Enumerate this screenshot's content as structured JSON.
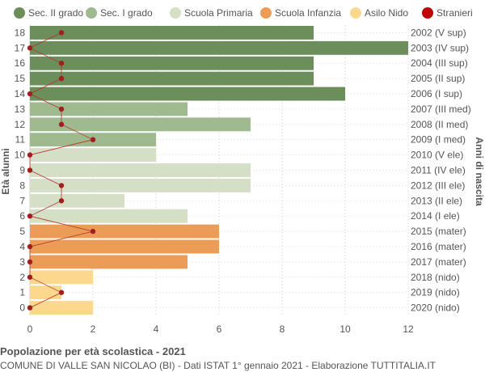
{
  "chart_data": {
    "type": "bar",
    "orientation": "horizontal",
    "title": "Popolazione per età scolastica - 2021",
    "subtitle": "COMUNE DI VALLE SAN NICOLAO (BI) - Dati ISTAT 1° gennaio 2021 - Elaborazione TUTTITALIA.IT",
    "ylabel_left": "Età alunni",
    "ylabel_right": "Anni di nascita",
    "xlim": [
      0,
      12
    ],
    "x_ticks": [
      "0",
      "2",
      "4",
      "6",
      "8",
      "10",
      "12"
    ],
    "grid": true,
    "legend_position": "top",
    "legend": [
      {
        "name": "Sec. II grado",
        "color": "#6b8e5a"
      },
      {
        "name": "Sec. I grado",
        "color": "#9fba8f"
      },
      {
        "name": "Scuola Primaria",
        "color": "#d4dfc5"
      },
      {
        "name": "Scuola Infanzia",
        "color": "#eb9d58"
      },
      {
        "name": "Asilo Nido",
        "color": "#fcd88f"
      },
      {
        "name": "Stranieri",
        "color": "#c00000"
      }
    ],
    "rows": [
      {
        "age": "18",
        "birth": "2002 (V sup)",
        "value": 9,
        "stranieri": 1,
        "group": 0
      },
      {
        "age": "17",
        "birth": "2003 (IV sup)",
        "value": 12,
        "stranieri": 0,
        "group": 0
      },
      {
        "age": "16",
        "birth": "2004 (III sup)",
        "value": 9,
        "stranieri": 1,
        "group": 0
      },
      {
        "age": "15",
        "birth": "2005 (II sup)",
        "value": 9,
        "stranieri": 1,
        "group": 0
      },
      {
        "age": "14",
        "birth": "2006 (I sup)",
        "value": 10,
        "stranieri": 0,
        "group": 0
      },
      {
        "age": "13",
        "birth": "2007 (III med)",
        "value": 5,
        "stranieri": 1,
        "group": 1
      },
      {
        "age": "12",
        "birth": "2008 (II med)",
        "value": 7,
        "stranieri": 1,
        "group": 1
      },
      {
        "age": "11",
        "birth": "2009 (I med)",
        "value": 4,
        "stranieri": 2,
        "group": 1
      },
      {
        "age": "10",
        "birth": "2010 (V ele)",
        "value": 4,
        "stranieri": 0,
        "group": 2
      },
      {
        "age": "9",
        "birth": "2011 (IV ele)",
        "value": 7,
        "stranieri": 0,
        "group": 2
      },
      {
        "age": "8",
        "birth": "2012 (III ele)",
        "value": 7,
        "stranieri": 1,
        "group": 2
      },
      {
        "age": "7",
        "birth": "2013 (II ele)",
        "value": 3,
        "stranieri": 1,
        "group": 2
      },
      {
        "age": "6",
        "birth": "2014 (I ele)",
        "value": 5,
        "stranieri": 0,
        "group": 2
      },
      {
        "age": "5",
        "birth": "2015 (mater)",
        "value": 6,
        "stranieri": 2,
        "group": 3
      },
      {
        "age": "4",
        "birth": "2016 (mater)",
        "value": 6,
        "stranieri": 0,
        "group": 3
      },
      {
        "age": "3",
        "birth": "2017 (mater)",
        "value": 5,
        "stranieri": 0,
        "group": 3
      },
      {
        "age": "2",
        "birth": "2018 (nido)",
        "value": 2,
        "stranieri": 0,
        "group": 4
      },
      {
        "age": "1",
        "birth": "2019 (nido)",
        "value": 1,
        "stranieri": 1,
        "group": 4
      },
      {
        "age": "0",
        "birth": "2020 (nido)",
        "value": 2,
        "stranieri": 0,
        "group": 4
      }
    ]
  }
}
